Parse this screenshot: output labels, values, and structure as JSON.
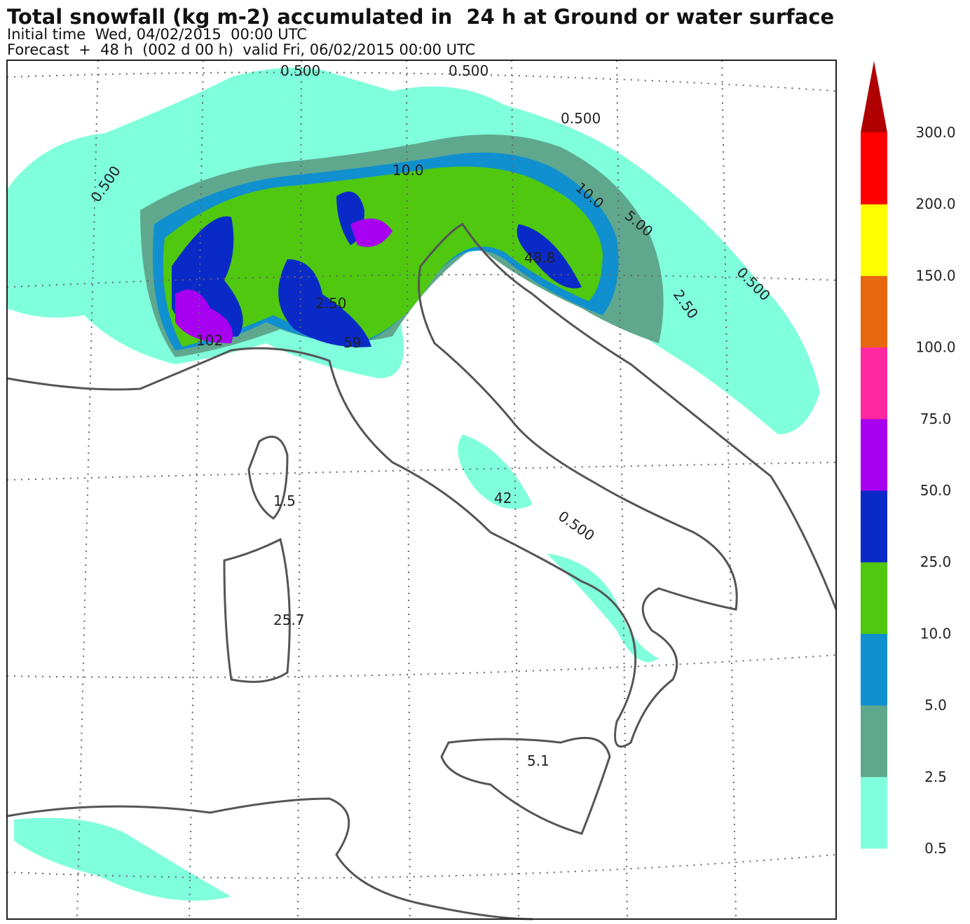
{
  "header": {
    "title": "Total snowfall (kg m-2) accumulated in  24 h at Ground or water surface",
    "initial_time": "Initial time  Wed, 04/02/2015  00:00 UTC",
    "forecast": "Forecast  +  48 h  (002 d 00 h)  valid Fri, 06/02/2015 00:00 UTC"
  },
  "colorbar": {
    "labels": [
      "0.5",
      "2.5",
      "5.0",
      "10.0",
      "25.0",
      "50.0",
      "75.0",
      "100.0",
      "150.0",
      "200.0",
      "300.0"
    ],
    "colors": [
      "#80ffdc",
      "#5fa88e",
      "#1190d0",
      "#4fc80f",
      "#0a2ac8",
      "#a800f0",
      "#ff28a0",
      "#e8680f",
      "#ffff00",
      "#ff0000",
      "#b00000"
    ]
  },
  "map_labels": [
    "0.500",
    "0.500",
    "0.500",
    "0.500",
    "2.50",
    "5.00",
    "10.0",
    "48.8",
    "102",
    "59",
    "42",
    "1.5",
    "25.7",
    "5.1",
    "0.500",
    "10.0",
    "2.50",
    "0.500"
  ]
}
